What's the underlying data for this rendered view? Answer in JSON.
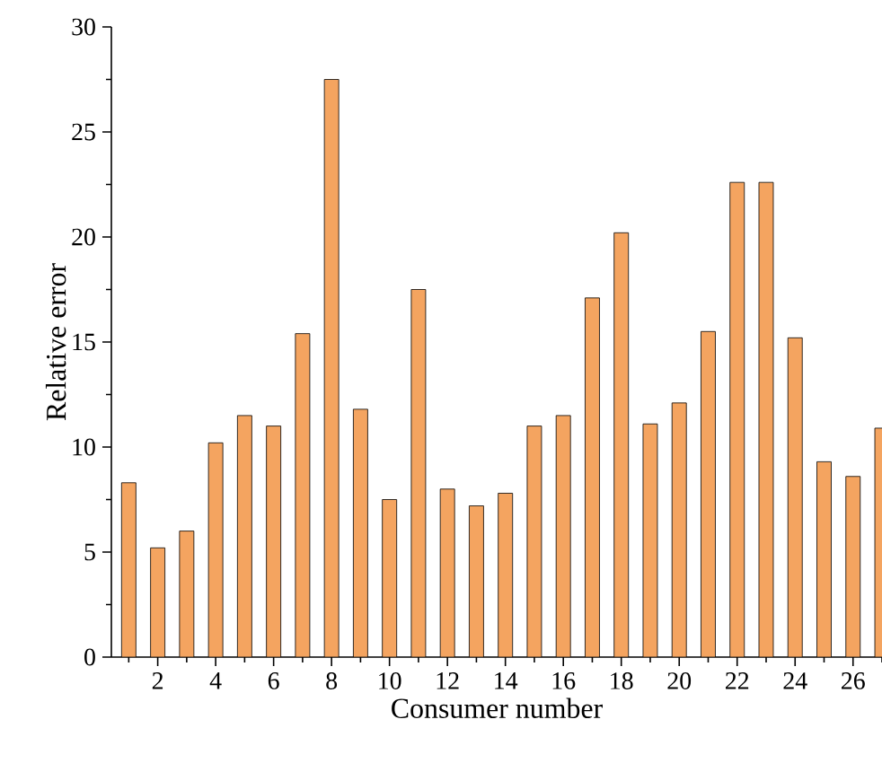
{
  "chart_data": {
    "type": "bar",
    "xlabel": "Consumer number",
    "ylabel": "Relative error",
    "x": [
      1,
      2,
      3,
      4,
      5,
      6,
      7,
      8,
      9,
      10,
      11,
      12,
      13,
      14,
      15,
      16,
      17,
      18,
      19,
      20,
      21,
      22,
      23,
      24,
      25,
      26,
      27
    ],
    "values": [
      8.3,
      5.2,
      6.0,
      10.2,
      11.5,
      11.0,
      15.4,
      27.5,
      11.8,
      7.5,
      17.5,
      8.0,
      7.2,
      7.8,
      11.0,
      11.5,
      17.1,
      20.2,
      11.1,
      12.1,
      15.5,
      22.6,
      22.6,
      15.2,
      9.3,
      8.6,
      10.9
    ],
    "color": "#f4a460",
    "xlim": [
      0.4,
      27
    ],
    "ylim": [
      0,
      30
    ],
    "xticks": [
      {
        "value": 1,
        "label": null
      },
      2,
      {
        "value": 3,
        "label": null
      },
      4,
      {
        "value": 5,
        "label": null
      },
      6,
      {
        "value": 7,
        "label": null
      },
      8,
      {
        "value": 9,
        "label": null
      },
      10,
      {
        "value": 11,
        "label": null
      },
      12,
      {
        "value": 13,
        "label": null
      },
      14,
      {
        "value": 15,
        "label": null
      },
      16,
      {
        "value": 17,
        "label": null
      },
      18,
      {
        "value": 19,
        "label": null
      },
      20,
      {
        "value": 21,
        "label": null
      },
      22,
      {
        "value": 23,
        "label": null
      },
      24,
      {
        "value": 25,
        "label": null
      },
      26,
      {
        "value": 27,
        "label": null
      }
    ],
    "yticks": [
      0,
      {
        "value": 2.5,
        "label": null
      },
      5,
      {
        "value": 7.5,
        "label": null
      },
      10,
      {
        "value": 12.5,
        "label": null
      },
      15,
      {
        "value": 17.5,
        "label": null
      },
      20,
      {
        "value": 22.5,
        "label": null
      },
      25,
      {
        "value": 27.5,
        "label": null
      },
      30
    ],
    "grid": false
  }
}
